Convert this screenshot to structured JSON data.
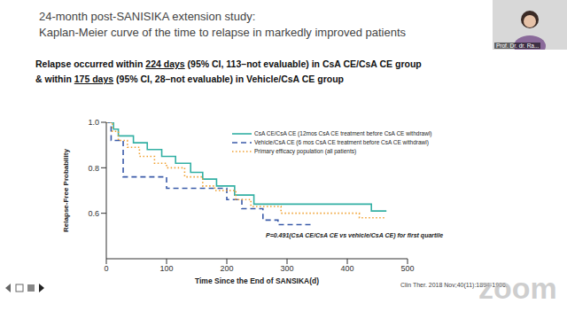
{
  "chart_data": {
    "type": "line",
    "title": [
      "24-month post-SANISIKA extension study:",
      "Kaplan-Meier curve of the time to relapse in markedly improved patients"
    ],
    "headline_lines": [
      [
        "Relapse occurred within ",
        "224 days",
        " (95% CI, 113–not evaluable) in CsA CE/CsA CE group"
      ],
      [
        "& within ",
        "175 days",
        " (95% CI, 28–not evaluable) in Vehicle/CsA CE group"
      ]
    ],
    "xlabel": "Time Since the End of SANSIKA(d)",
    "ylabel": "Relapse-Free Probability",
    "xlim": [
      0,
      500
    ],
    "xticks": [
      0,
      100,
      200,
      300,
      400,
      500
    ],
    "ylim": [
      0.4,
      1
    ],
    "yticks": [
      0.6,
      0.8,
      {
        "value": 1,
        "label": "1.0"
      }
    ],
    "grid": false,
    "legend": "upper right",
    "annotation": "P=0.491(CsA CE/CsA CE vs vehicle/CsA CE) for first quartile",
    "source": "Clin Ther. 2018 Nov;40(11):1894-1906.",
    "series": [
      {
        "name": "CsA CE/CsA CE (12mos CsA CE treatment before CsA CE withdrawl)",
        "color": "#33b0a4",
        "line_style": "solid",
        "x": [
          0,
          12,
          20,
          45,
          68,
          92,
          115,
          140,
          160,
          183,
          213,
          245,
          440,
          465
        ],
        "values": [
          1,
          0.97,
          0.94,
          0.91,
          0.88,
          0.85,
          0.82,
          0.78,
          0.75,
          0.72,
          0.68,
          0.64,
          0.61,
          0.61
        ]
      },
      {
        "name": "Vehicle/CsA CE (6 mos CsA CE treatment before CsA CE withdrawl)",
        "color": "#3b5ba9",
        "line_style": "dashed",
        "x": [
          0,
          8,
          28,
          100,
          200,
          225,
          260,
          285,
          340
        ],
        "values": [
          1,
          0.92,
          0.76,
          0.71,
          0.66,
          0.62,
          0.57,
          0.55,
          0.55
        ]
      },
      {
        "name": "Primary efficacy population (all patients)",
        "color": "#f0a030",
        "line_style": "dotted",
        "x": [
          0,
          10,
          20,
          35,
          55,
          80,
          100,
          130,
          160,
          180,
          215,
          240,
          290,
          420,
          465
        ],
        "values": [
          1,
          0.96,
          0.92,
          0.89,
          0.85,
          0.82,
          0.8,
          0.76,
          0.72,
          0.7,
          0.66,
          0.63,
          0.6,
          0.58,
          0.58
        ]
      }
    ]
  },
  "overlay": {
    "speaker": "Prof. Dr. dr. Ra...",
    "watermark": "zoom"
  }
}
